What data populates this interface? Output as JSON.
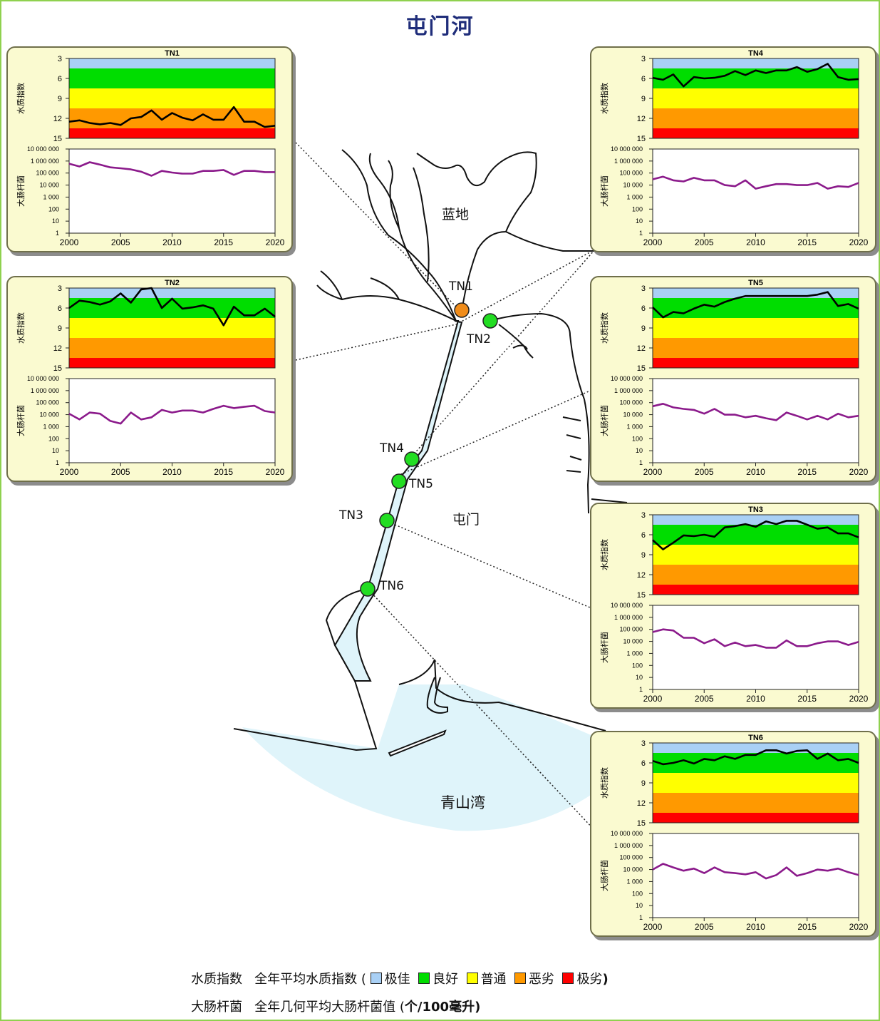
{
  "title": "屯门河",
  "places": {
    "landi": "蓝地",
    "tuenmun": "屯门",
    "bay": "青山湾"
  },
  "stations": [
    {
      "id": "TN1",
      "status": "bad"
    },
    {
      "id": "TN2",
      "status": "good"
    },
    {
      "id": "TN3",
      "status": "good"
    },
    {
      "id": "TN4",
      "status": "good"
    },
    {
      "id": "TN5",
      "status": "good"
    },
    {
      "id": "TN6",
      "status": "good"
    }
  ],
  "colors": {
    "excellent": "#a9d0f5",
    "good": "#00dd00",
    "fair": "#ffff00",
    "bad": "#ff9900",
    "very_bad": "#ff0000",
    "wqi_line": "#000000",
    "ecoli_line": "#8b1a8b",
    "water": "#dff4fa",
    "station_good": "#22dd22",
    "station_bad": "#f08c1a"
  },
  "axis_labels": {
    "wqi": "水质指数",
    "ecoli": "大肠杆菌"
  },
  "wqi_ticks": [
    "3",
    "6",
    "9",
    "12",
    "15"
  ],
  "ecoli_ticks": [
    "10 000 000",
    "1 000 000",
    "100 000",
    "10 000",
    "1 000",
    "100",
    "10",
    "1"
  ],
  "x_ticks": [
    "2000",
    "2005",
    "2010",
    "2015",
    "2020"
  ],
  "legend": {
    "row1_name": "水质指数",
    "row1_desc": "全年平均水质指数 (",
    "items": [
      {
        "label": "极佳",
        "color": "#a9d0f5"
      },
      {
        "label": "良好",
        "color": "#00dd00"
      },
      {
        "label": "普通",
        "color": "#ffff00"
      },
      {
        "label": "恶劣",
        "color": "#ff9900"
      },
      {
        "label": "极劣",
        "color": "#ff0000"
      }
    ],
    "row1_end": ")",
    "row2_name": "大肠杆菌",
    "row2_desc": "全年几何平均大肠杆菌值 (",
    "row2_unit": "个/100毫升",
    "row2_end": ")"
  },
  "chart_data": [
    {
      "station": "TN1",
      "type": "line",
      "x": [
        2000,
        2001,
        2002,
        2003,
        2004,
        2005,
        2006,
        2007,
        2008,
        2009,
        2010,
        2011,
        2012,
        2013,
        2014,
        2015,
        2016,
        2017,
        2018,
        2019,
        2020
      ],
      "wqi": [
        12.5,
        12.3,
        12.7,
        12.9,
        12.7,
        13.0,
        12.0,
        11.8,
        10.8,
        12.2,
        11.2,
        11.9,
        12.3,
        11.4,
        12.2,
        12.2,
        10.3,
        12.5,
        12.5,
        13.3,
        13.1
      ],
      "ecoli": [
        600000,
        350000,
        800000,
        500000,
        300000,
        250000,
        200000,
        130000,
        60000,
        150000,
        110000,
        90000,
        90000,
        150000,
        150000,
        180000,
        70000,
        150000,
        150000,
        120000,
        120000
      ]
    },
    {
      "station": "TN2",
      "type": "line",
      "x": [
        2000,
        2001,
        2002,
        2003,
        2004,
        2005,
        2006,
        2007,
        2008,
        2009,
        2010,
        2011,
        2012,
        2013,
        2014,
        2015,
        2016,
        2017,
        2018,
        2019,
        2020
      ],
      "wqi": [
        6.0,
        4.9,
        5.1,
        5.5,
        5.0,
        3.8,
        5.2,
        3.2,
        3.0,
        6.0,
        4.6,
        6.1,
        5.9,
        5.6,
        6.1,
        8.6,
        5.8,
        7.1,
        7.1,
        6.1,
        7.3
      ],
      "ecoli": [
        12000,
        4000,
        15000,
        12000,
        3000,
        1800,
        15000,
        4000,
        6000,
        25000,
        15000,
        22000,
        22000,
        15000,
        30000,
        55000,
        35000,
        45000,
        55000,
        20000,
        15000
      ]
    },
    {
      "station": "TN4",
      "type": "line",
      "x": [
        2000,
        2001,
        2002,
        2003,
        2004,
        2005,
        2006,
        2007,
        2008,
        2009,
        2010,
        2011,
        2012,
        2013,
        2014,
        2015,
        2016,
        2017,
        2018,
        2019,
        2020
      ],
      "wqi": [
        5.9,
        6.2,
        5.4,
        7.2,
        5.8,
        6.0,
        5.9,
        5.6,
        4.9,
        5.5,
        4.8,
        5.2,
        4.8,
        4.8,
        4.3,
        5.0,
        4.6,
        3.8,
        5.8,
        6.2,
        6.1
      ],
      "ecoli": [
        30000,
        50000,
        25000,
        20000,
        40000,
        25000,
        25000,
        10000,
        8000,
        25000,
        5000,
        8000,
        12000,
        12000,
        10000,
        10000,
        15000,
        5000,
        8000,
        7000,
        15000
      ]
    },
    {
      "station": "TN5",
      "type": "line",
      "x": [
        2000,
        2001,
        2002,
        2003,
        2004,
        2005,
        2006,
        2007,
        2008,
        2009,
        2010,
        2011,
        2012,
        2013,
        2014,
        2015,
        2016,
        2017,
        2018,
        2019,
        2020
      ],
      "wqi": [
        5.9,
        7.4,
        6.6,
        6.8,
        6.1,
        5.5,
        5.8,
        5.1,
        4.6,
        4.2,
        4.2,
        4.2,
        4.2,
        4.2,
        4.2,
        4.2,
        4.0,
        3.6,
        5.7,
        5.4,
        6.1
      ],
      "ecoli": [
        50000,
        80000,
        40000,
        30000,
        25000,
        12000,
        30000,
        10000,
        10000,
        6000,
        8000,
        5000,
        3500,
        15000,
        8000,
        4000,
        8000,
        4000,
        12000,
        6000,
        8000
      ]
    },
    {
      "station": "TN3",
      "type": "line",
      "x": [
        2000,
        2001,
        2002,
        2003,
        2004,
        2005,
        2006,
        2007,
        2008,
        2009,
        2010,
        2011,
        2012,
        2013,
        2014,
        2015,
        2016,
        2017,
        2018,
        2019,
        2020
      ],
      "wqi": [
        6.8,
        8.2,
        7.2,
        6.1,
        6.2,
        6.0,
        6.3,
        4.9,
        4.7,
        4.4,
        4.8,
        4.0,
        4.4,
        3.9,
        3.9,
        4.5,
        5.1,
        4.9,
        5.8,
        5.8,
        6.4
      ],
      "ecoli": [
        60000,
        100000,
        80000,
        20000,
        20000,
        7000,
        15000,
        4000,
        8000,
        4000,
        5000,
        3000,
        3000,
        12000,
        4000,
        4000,
        7000,
        10000,
        10000,
        5000,
        9000
      ]
    },
    {
      "station": "TN6",
      "type": "line",
      "x": [
        2000,
        2001,
        2002,
        2003,
        2004,
        2005,
        2006,
        2007,
        2008,
        2009,
        2010,
        2011,
        2012,
        2013,
        2014,
        2015,
        2016,
        2017,
        2018,
        2019,
        2020
      ],
      "wqi": [
        5.7,
        6.2,
        6.0,
        5.6,
        6.1,
        5.4,
        5.6,
        5.0,
        5.4,
        4.8,
        4.8,
        4.1,
        4.1,
        4.6,
        4.2,
        4.1,
        5.4,
        4.6,
        5.6,
        5.4,
        6.0
      ],
      "ecoli": [
        10000,
        30000,
        15000,
        8000,
        12000,
        5000,
        15000,
        6000,
        5000,
        4000,
        6000,
        1800,
        3500,
        15000,
        3000,
        5000,
        10000,
        8000,
        12000,
        6000,
        3500
      ]
    }
  ]
}
